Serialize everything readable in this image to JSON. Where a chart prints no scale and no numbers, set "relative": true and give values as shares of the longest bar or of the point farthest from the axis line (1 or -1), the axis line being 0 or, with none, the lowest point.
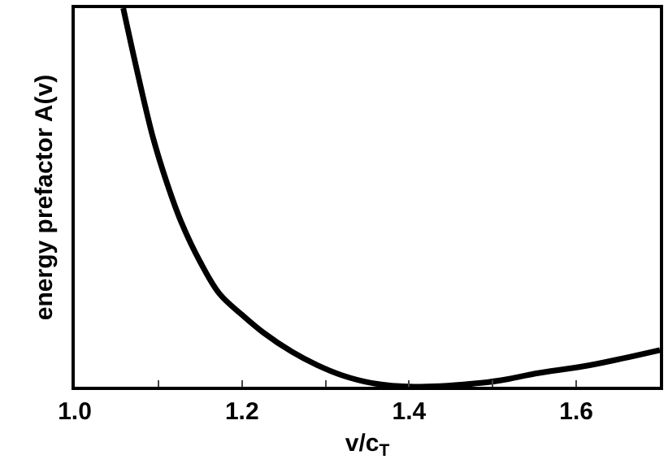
{
  "chart_data": {
    "type": "line",
    "relative": true,
    "xlabel": "v/c$_{T}$",
    "ylabel": "energy prefactor A(v)",
    "x": [
      1.058,
      1.075,
      1.094,
      1.11,
      1.127,
      1.15,
      1.173,
      1.2,
      1.225,
      1.26,
      1.29,
      1.32,
      1.355,
      1.41,
      1.486,
      1.52,
      1.551,
      1.616,
      1.7
    ],
    "series": [
      {
        "color": "#000000",
        "values": [
          1.0,
          0.83,
          0.655,
          0.54,
          0.437,
          0.33,
          0.246,
          0.19,
          0.144,
          0.092,
          0.057,
          0.03,
          0.01,
          0.0,
          0.01,
          0.021,
          0.035,
          0.057,
          0.097
        ]
      }
    ],
    "xlim": [
      1.0,
      1.7
    ],
    "xticks": [
      {
        "value": 1.0,
        "label": "1.0"
      },
      {
        "value": 1.1,
        "label": null
      },
      {
        "value": 1.2,
        "label": "1.2"
      },
      {
        "value": 1.3,
        "label": null
      },
      {
        "value": 1.4,
        "label": "1.4"
      },
      {
        "value": 1.5,
        "label": null
      },
      {
        "value": 1.6,
        "label": "1.6"
      }
    ],
    "marker": "none",
    "line_style": "solid"
  }
}
